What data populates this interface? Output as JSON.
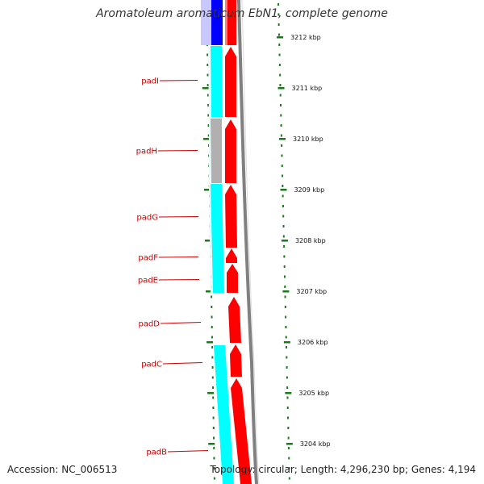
{
  "title": "Aromatoleum aromaticum EbN1, complete genome",
  "footer": {
    "accession": "Accession: NC_006513",
    "topology": "Topology: circular; Length: 4,296,230 bp; Genes: 4,194"
  },
  "colors": {
    "forward_gene": "#ff0000",
    "reverse_orf": "#00ffff",
    "reverse_dark": "#0000ff",
    "hypothetical": "#b0b0b0",
    "tick": "#1a7a1a",
    "label": "#cc0000",
    "backbone": "#808080"
  },
  "gene_labels": [
    "padI",
    "padH",
    "padG",
    "padF",
    "padE",
    "padD",
    "padC",
    "padB"
  ],
  "kbp_ticks": [
    "3212 kbp",
    "3211 kbp",
    "3210 kbp",
    "3209 kbp",
    "3208 kbp",
    "3207 kbp",
    "3206 kbp",
    "3205 kbp",
    "3204 kbp"
  ]
}
